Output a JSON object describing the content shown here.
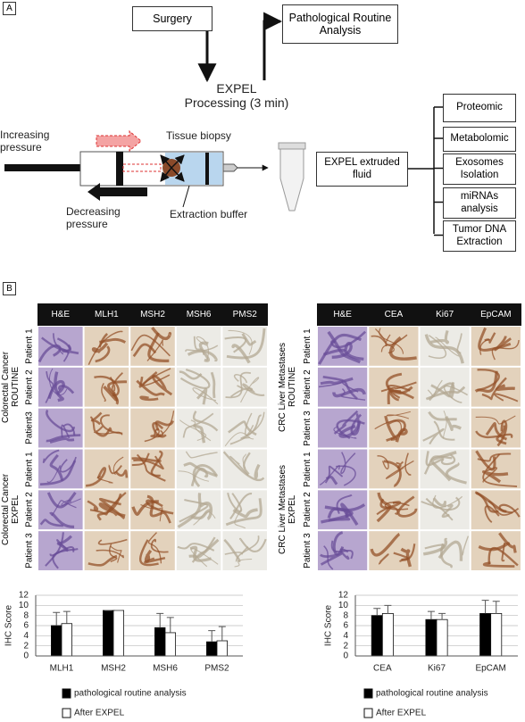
{
  "panel_a": {
    "label": "A",
    "surgery": "Surgery",
    "pathological": "Pathological Routine Analysis",
    "processing": [
      "EXPEL",
      "Processing (3 min)"
    ],
    "increasing": "Increasing pressure",
    "decreasing": "Decreasing pressure",
    "tissue": "Tissue biopsy",
    "buffer": "Extraction buffer",
    "fluid": "EXPEL extruded fluid",
    "outputs": [
      "Proteomic",
      "Metabolomic",
      "Exosomes Isolation",
      "miRNAs analysis",
      "Tumor DNA Extraction"
    ]
  },
  "panel_b": {
    "label": "B",
    "grids": [
      {
        "columns": [
          "H&E",
          "MLH1",
          "MSH2",
          "MSH6",
          "PMS2"
        ],
        "groups": [
          {
            "label": "Colorectal Cancer ROUTINE",
            "rows": [
              "Patient 1",
              "Patient 2",
              "Patient3"
            ]
          },
          {
            "label": "Colorectal Cancer EXPEL",
            "rows": [
              "Patient 1",
              "Patient 2",
              "Patient 3"
            ]
          }
        ]
      },
      {
        "columns": [
          "H&E",
          "CEA",
          "Ki67",
          "EpCAM"
        ],
        "groups": [
          {
            "label": "CRC Liver Metastases ROUTINE",
            "rows": [
              "Patient 1",
              "Patient 2",
              "Patient 3"
            ]
          },
          {
            "label": "CRC Liver Metastases EXPEL",
            "rows": [
              "Patient 1",
              "Patient 2",
              "Patient 3"
            ]
          }
        ]
      }
    ]
  },
  "chart_data": [
    {
      "type": "bar",
      "y_label": "IHC Score",
      "categories": [
        "MLH1",
        "MSH2",
        "MSH6",
        "PMS2"
      ],
      "ylim": [
        0,
        12
      ],
      "yticks": [
        0,
        2,
        4,
        6,
        8,
        10,
        12
      ],
      "series": [
        {
          "name": "pathological routine analysis",
          "color": "#000000",
          "values": [
            6,
            9,
            5.6,
            2.8
          ],
          "errors": [
            2.6,
            0,
            2.8,
            2.2
          ]
        },
        {
          "name": "After EXPEL",
          "color": "#ffffff",
          "values": [
            6.4,
            9,
            4.6,
            3
          ],
          "errors": [
            2.4,
            0,
            3,
            2.8
          ]
        }
      ]
    },
    {
      "type": "bar",
      "y_label": "IHC Score",
      "categories": [
        "CEA",
        "Ki67",
        "EpCAM"
      ],
      "ylim": [
        0,
        12
      ],
      "yticks": [
        0,
        2,
        4,
        6,
        8,
        10,
        12
      ],
      "series": [
        {
          "name": "pathological routine analysis",
          "color": "#000000",
          "values": [
            8,
            7.2,
            8.4
          ],
          "errors": [
            1.4,
            1.6,
            2.6
          ]
        },
        {
          "name": "After EXPEL",
          "color": "#ffffff",
          "values": [
            8.4,
            7.2,
            8.4
          ],
          "errors": [
            1.6,
            1.2,
            2.4
          ]
        }
      ]
    }
  ]
}
